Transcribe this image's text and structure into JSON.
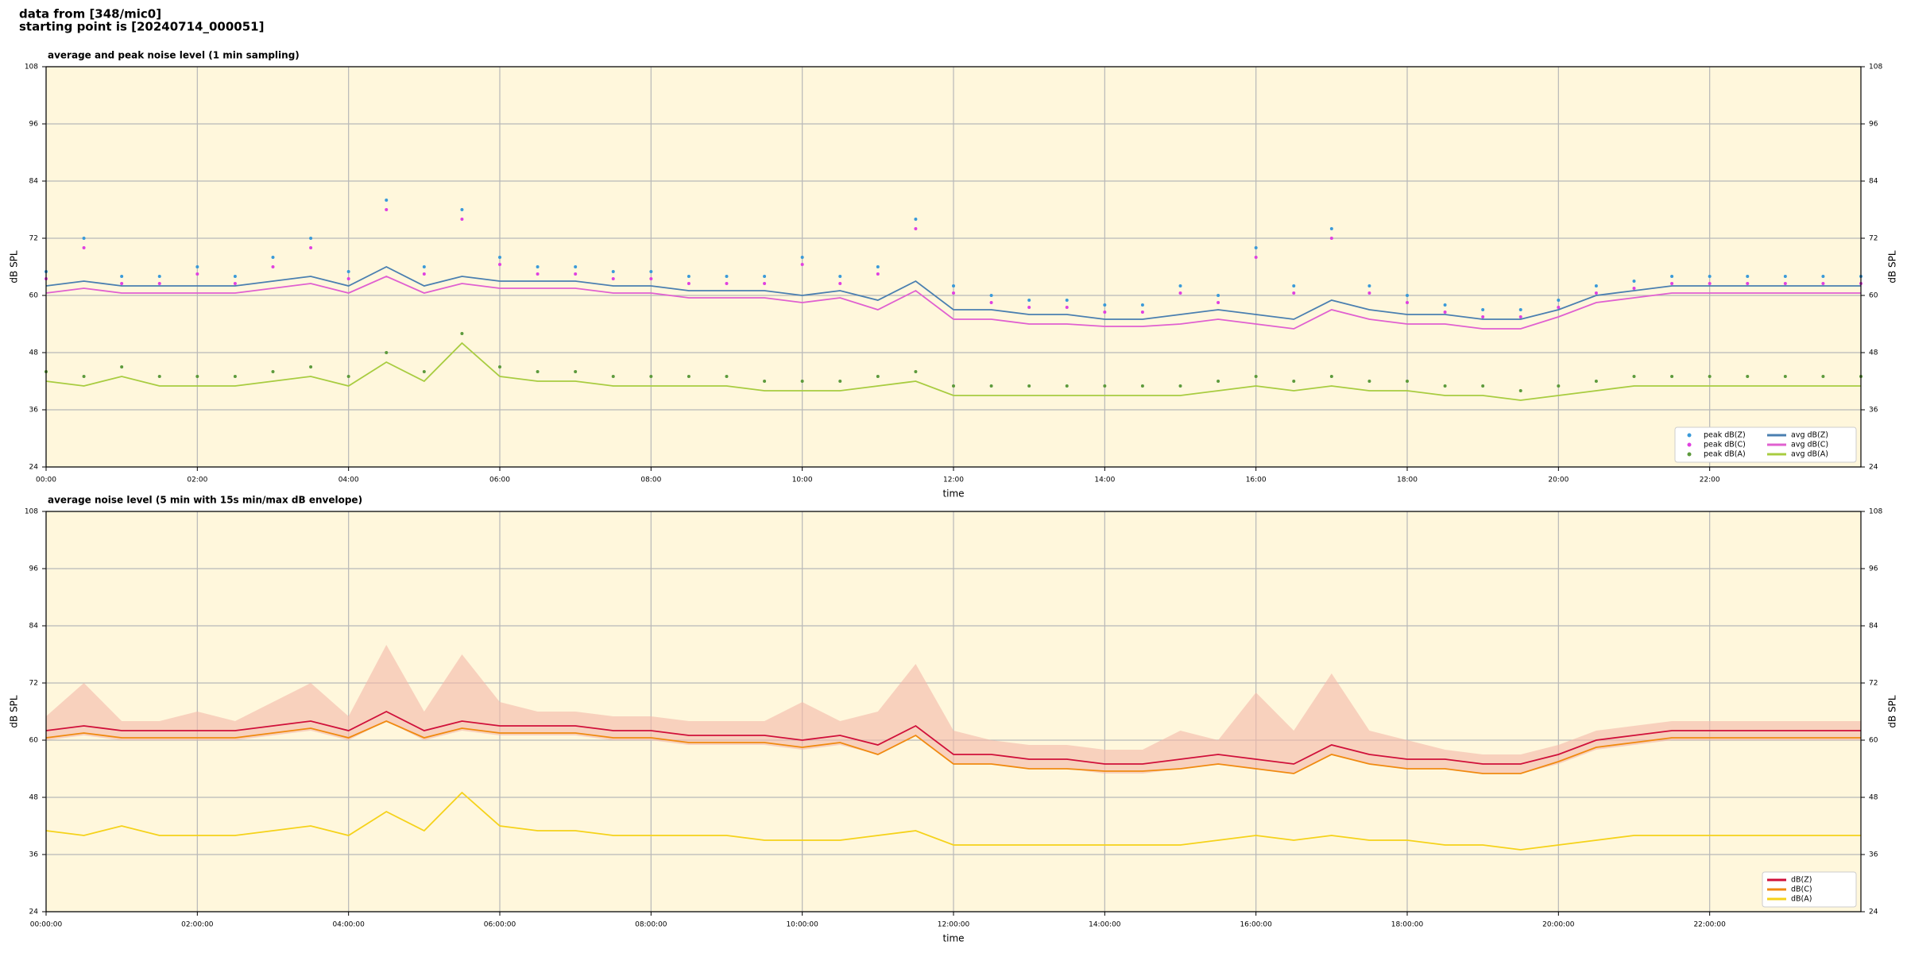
{
  "header": {
    "line1": "data from [348/mic0]",
    "line2": "starting point is [20240714_000051]"
  },
  "chart_data": [
    {
      "type": "line",
      "title": "average and peak noise level (1 min sampling)",
      "x_label": "time",
      "y_label": "dB SPL",
      "xlim": [
        0,
        24
      ],
      "ylim": [
        24,
        108
      ],
      "yticks": [
        24,
        36,
        48,
        60,
        72,
        84,
        96,
        108
      ],
      "grid": true,
      "legend": "lower right",
      "xticks": [
        {
          "value": 0,
          "label": "00:00"
        },
        {
          "value": 2,
          "label": "02:00"
        },
        {
          "value": 4,
          "label": "04:00"
        },
        {
          "value": 6,
          "label": "06:00"
        },
        {
          "value": 8,
          "label": "08:00"
        },
        {
          "value": 10,
          "label": "10:00"
        },
        {
          "value": 12,
          "label": "12:00"
        },
        {
          "value": 14,
          "label": "14:00"
        },
        {
          "value": 16,
          "label": "16:00"
        },
        {
          "value": 18,
          "label": "18:00"
        },
        {
          "value": 20,
          "label": "20:00"
        },
        {
          "value": 22,
          "label": "22:00"
        }
      ],
      "x": [
        0,
        0.5,
        1,
        1.5,
        2,
        2.5,
        3,
        3.5,
        4,
        4.5,
        5,
        5.5,
        6,
        6.5,
        7,
        7.5,
        8,
        8.5,
        9,
        9.5,
        10,
        10.5,
        11,
        11.5,
        12,
        12.5,
        13,
        13.5,
        14,
        14.5,
        15,
        15.5,
        16,
        16.5,
        17,
        17.5,
        18,
        18.5,
        19,
        19.5,
        20,
        20.5,
        21,
        21.5,
        22,
        22.5,
        23,
        23.5,
        24
      ],
      "series": [
        {
          "name": "peak dB(Z)",
          "kind": "scatter",
          "color": "#3a9ad9",
          "values": [
            65,
            72,
            64,
            64,
            66,
            64,
            68,
            72,
            65,
            80,
            66,
            78,
            68,
            66,
            66,
            65,
            65,
            64,
            64,
            64,
            68,
            64,
            66,
            76,
            62,
            60,
            59,
            59,
            58,
            58,
            62,
            60,
            70,
            62,
            74,
            62,
            60,
            58,
            57,
            57,
            59,
            62,
            63,
            64,
            64,
            64,
            64,
            64,
            64
          ]
        },
        {
          "name": "peak dB(C)",
          "kind": "scatter",
          "color": "#e040e0",
          "values": [
            63.5,
            70,
            62.5,
            62.5,
            64.5,
            62.5,
            66,
            70,
            63.5,
            78,
            64.5,
            76,
            66.5,
            64.5,
            64.5,
            63.5,
            63.5,
            62.5,
            62.5,
            62.5,
            66.5,
            62.5,
            64.5,
            74,
            60.5,
            58.5,
            57.5,
            57.5,
            56.5,
            56.5,
            60.5,
            58.5,
            68,
            60.5,
            72,
            60.5,
            58.5,
            56.5,
            55.5,
            55.5,
            57.5,
            60.5,
            61.5,
            62.5,
            62.5,
            62.5,
            62.5,
            62.5,
            62.5
          ]
        },
        {
          "name": "peak dB(A)",
          "kind": "scatter",
          "color": "#5c9a3c",
          "values": [
            44,
            43,
            45,
            43,
            43,
            43,
            44,
            45,
            43,
            48,
            44,
            52,
            45,
            44,
            44,
            43,
            43,
            43,
            43,
            42,
            42,
            42,
            43,
            44,
            41,
            41,
            41,
            41,
            41,
            41,
            41,
            42,
            43,
            42,
            43,
            42,
            42,
            41,
            41,
            40,
            41,
            42,
            43,
            43,
            43,
            43,
            43,
            43,
            43
          ]
        },
        {
          "name": "avg dB(Z)",
          "kind": "line",
          "color": "#4a7fb0",
          "values": [
            62,
            63,
            62,
            62,
            62,
            62,
            63,
            64,
            62,
            66,
            62,
            64,
            63,
            63,
            63,
            62,
            62,
            61,
            61,
            61,
            60,
            61,
            59,
            63,
            57,
            57,
            56,
            56,
            55,
            55,
            56,
            57,
            56,
            55,
            59,
            57,
            56,
            56,
            55,
            55,
            57,
            60,
            61,
            62,
            62,
            62,
            62,
            62,
            62
          ]
        },
        {
          "name": "avg dB(C)",
          "kind": "line",
          "color": "#e060d0",
          "values": [
            60.5,
            61.5,
            60.5,
            60.5,
            60.5,
            60.5,
            61.5,
            62.5,
            60.5,
            64,
            60.5,
            62.5,
            61.5,
            61.5,
            61.5,
            60.5,
            60.5,
            59.5,
            59.5,
            59.5,
            58.5,
            59.5,
            57,
            61,
            55,
            55,
            54,
            54,
            53.5,
            53.5,
            54,
            55,
            54,
            53,
            57,
            55,
            54,
            54,
            53,
            53,
            55.5,
            58.5,
            59.5,
            60.5,
            60.5,
            60.5,
            60.5,
            60.5,
            60.5
          ]
        },
        {
          "name": "avg dB(A)",
          "kind": "line",
          "color": "#a8cc40",
          "values": [
            42,
            41,
            43,
            41,
            41,
            41,
            42,
            43,
            41,
            46,
            42,
            50,
            43,
            42,
            42,
            41,
            41,
            41,
            41,
            40,
            40,
            40,
            41,
            42,
            39,
            39,
            39,
            39,
            39,
            39,
            39,
            40,
            41,
            40,
            41,
            40,
            40,
            39,
            39,
            38,
            39,
            40,
            41,
            41,
            41,
            41,
            41,
            41,
            41
          ]
        }
      ]
    },
    {
      "type": "line",
      "title": "average noise level (5 min with 15s min/max dB envelope)",
      "x_label": "time",
      "y_label": "dB SPL",
      "xlim": [
        0,
        24
      ],
      "ylim": [
        24,
        108
      ],
      "yticks": [
        24,
        36,
        48,
        60,
        72,
        84,
        96,
        108
      ],
      "grid": true,
      "legend": "lower right",
      "xticks": [
        {
          "value": 0,
          "label": "00:00:00"
        },
        {
          "value": 2,
          "label": "02:00:00"
        },
        {
          "value": 4,
          "label": "04:00:00"
        },
        {
          "value": 6,
          "label": "06:00:00"
        },
        {
          "value": 8,
          "label": "08:00:00"
        },
        {
          "value": 10,
          "label": "10:00:00"
        },
        {
          "value": 12,
          "label": "12:00:00"
        },
        {
          "value": 14,
          "label": "14:00:00"
        },
        {
          "value": 16,
          "label": "16:00:00"
        },
        {
          "value": 18,
          "label": "18:00:00"
        },
        {
          "value": 20,
          "label": "20:00:00"
        },
        {
          "value": 22,
          "label": "22:00:00"
        }
      ],
      "x": [
        0,
        0.5,
        1,
        1.5,
        2,
        2.5,
        3,
        3.5,
        4,
        4.5,
        5,
        5.5,
        6,
        6.5,
        7,
        7.5,
        8,
        8.5,
        9,
        9.5,
        10,
        10.5,
        11,
        11.5,
        12,
        12.5,
        13,
        13.5,
        14,
        14.5,
        15,
        15.5,
        16,
        16.5,
        17,
        17.5,
        18,
        18.5,
        19,
        19.5,
        20,
        20.5,
        21,
        21.5,
        22,
        22.5,
        23,
        23.5,
        24
      ],
      "envelope": {
        "color": "#f4b8a8",
        "upper": [
          65,
          72,
          64,
          64,
          66,
          64,
          68,
          72,
          65,
          80,
          66,
          78,
          68,
          66,
          66,
          65,
          65,
          64,
          64,
          64,
          68,
          64,
          66,
          76,
          62,
          60,
          59,
          59,
          58,
          58,
          62,
          60,
          70,
          62,
          74,
          62,
          60,
          58,
          57,
          57,
          59,
          62,
          63,
          64,
          64,
          64,
          64,
          64,
          64
        ],
        "lower": [
          60,
          61,
          60,
          60,
          60,
          60,
          61,
          62,
          60,
          64,
          60,
          62,
          61,
          61,
          61,
          60,
          60,
          59,
          59,
          59,
          58,
          59,
          57,
          61,
          55,
          55,
          54,
          54,
          53,
          53,
          54,
          55,
          54,
          53,
          57,
          55,
          54,
          54,
          53,
          53,
          55,
          58,
          59,
          60,
          60,
          60,
          60,
          60,
          60
        ]
      },
      "series": [
        {
          "name": "dB(Z)",
          "kind": "line",
          "color": "#d0103a",
          "values": [
            62,
            63,
            62,
            62,
            62,
            62,
            63,
            64,
            62,
            66,
            62,
            64,
            63,
            63,
            63,
            62,
            62,
            61,
            61,
            61,
            60,
            61,
            59,
            63,
            57,
            57,
            56,
            56,
            55,
            55,
            56,
            57,
            56,
            55,
            59,
            57,
            56,
            56,
            55,
            55,
            57,
            60,
            61,
            62,
            62,
            62,
            62,
            62,
            62
          ]
        },
        {
          "name": "dB(C)",
          "kind": "line",
          "color": "#f08a10",
          "values": [
            60.5,
            61.5,
            60.5,
            60.5,
            60.5,
            60.5,
            61.5,
            62.5,
            60.5,
            64,
            60.5,
            62.5,
            61.5,
            61.5,
            61.5,
            60.5,
            60.5,
            59.5,
            59.5,
            59.5,
            58.5,
            59.5,
            57,
            61,
            55,
            55,
            54,
            54,
            53.5,
            53.5,
            54,
            55,
            54,
            53,
            57,
            55,
            54,
            54,
            53,
            53,
            55.5,
            58.5,
            59.5,
            60.5,
            60.5,
            60.5,
            60.5,
            60.5,
            60.5
          ]
        },
        {
          "name": "dB(A)",
          "kind": "line",
          "color": "#f5d21a",
          "values": [
            41,
            40,
            42,
            40,
            40,
            40,
            41,
            42,
            40,
            45,
            41,
            49,
            42,
            41,
            41,
            40,
            40,
            40,
            40,
            39,
            39,
            39,
            40,
            41,
            38,
            38,
            38,
            38,
            38,
            38,
            38,
            39,
            40,
            39,
            40,
            39,
            39,
            38,
            38,
            37,
            38,
            39,
            40,
            40,
            40,
            40,
            40,
            40,
            40
          ]
        }
      ]
    }
  ]
}
